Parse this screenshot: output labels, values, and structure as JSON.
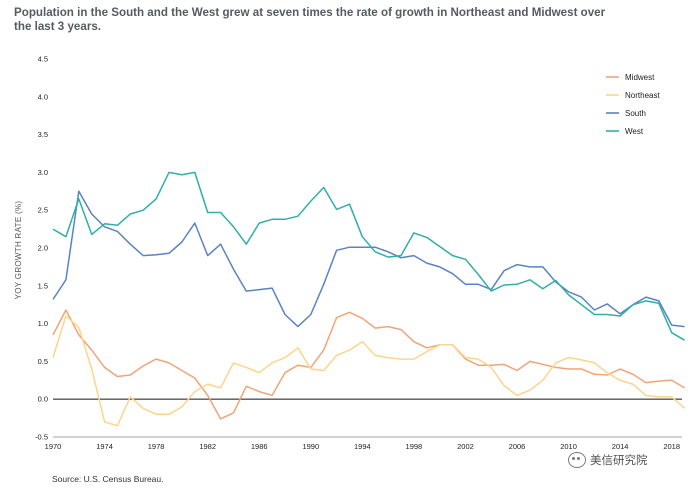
{
  "title": "Population in the South and the West grew at seven times the rate of growth in Northeast and Midwest over the last 3 years.",
  "source": "Source: U.S. Census Bureau.",
  "watermark": "美信研究院",
  "chart_data": {
    "type": "line",
    "ylabel": "YOY GROWTH RATE (%)",
    "xlabel": "",
    "xlim": [
      1970,
      2018.8
    ],
    "ylim": [
      -0.5,
      4.5
    ],
    "yticks": [
      "4.5",
      "4.0",
      "3.5",
      "3.0",
      "2.5",
      "2.0",
      "1.5",
      "1.0",
      "0.5",
      "0.0",
      "-0.5"
    ],
    "xticks": [
      "1970",
      "1974",
      "1978",
      "1982",
      "1986",
      "1990",
      "1994",
      "1998",
      "2002",
      "2006",
      "2010",
      "2014",
      "2018"
    ],
    "x": [
      1970,
      1971,
      1972,
      1973,
      1974,
      1975,
      1976,
      1977,
      1978,
      1979,
      1980,
      1981,
      1982,
      1983,
      1984,
      1985,
      1986,
      1987,
      1988,
      1989,
      1990,
      1991,
      1992,
      1993,
      1994,
      1995,
      1996,
      1997,
      1998,
      1999,
      2000,
      2001,
      2002,
      2003,
      2004,
      2005,
      2006,
      2007,
      2008,
      2009,
      2010,
      2011,
      2012,
      2013,
      2014,
      2015,
      2016,
      2017,
      2018,
      2019
    ],
    "series": [
      {
        "name": "Midwest",
        "color": "#f2a479",
        "values": [
          0.85,
          1.18,
          0.85,
          0.65,
          0.42,
          0.3,
          0.32,
          0.44,
          0.53,
          0.48,
          0.38,
          0.28,
          0.05,
          -0.26,
          -0.18,
          0.17,
          0.1,
          0.05,
          0.35,
          0.45,
          0.42,
          0.65,
          1.08,
          1.15,
          1.07,
          0.94,
          0.96,
          0.92,
          0.76,
          0.68,
          0.72,
          0.72,
          0.53,
          0.45,
          0.45,
          0.46,
          0.38,
          0.5,
          0.46,
          0.42,
          0.4,
          0.4,
          0.33,
          0.32,
          0.4,
          0.33,
          0.22,
          0.24,
          0.25,
          0.15
        ]
      },
      {
        "name": "Northeast",
        "color": "#fcd58c",
        "values": [
          0.55,
          1.1,
          0.95,
          0.4,
          -0.3,
          -0.35,
          0.03,
          -0.12,
          -0.2,
          -0.2,
          -0.1,
          0.1,
          0.2,
          0.15,
          0.48,
          0.42,
          0.35,
          0.48,
          0.55,
          0.68,
          0.4,
          0.38,
          0.58,
          0.65,
          0.76,
          0.58,
          0.55,
          0.53,
          0.53,
          0.63,
          0.72,
          0.72,
          0.55,
          0.53,
          0.42,
          0.18,
          0.05,
          0.12,
          0.25,
          0.48,
          0.55,
          0.52,
          0.48,
          0.35,
          0.25,
          0.2,
          0.05,
          0.03,
          0.03,
          -0.12
        ]
      },
      {
        "name": "South",
        "color": "#5b83c1",
        "values": [
          1.32,
          1.58,
          2.75,
          2.45,
          2.28,
          2.22,
          2.05,
          1.9,
          1.91,
          1.93,
          2.08,
          2.33,
          1.9,
          2.05,
          1.72,
          1.43,
          1.45,
          1.47,
          1.12,
          0.96,
          1.12,
          1.52,
          1.97,
          2.01,
          2.01,
          2.01,
          1.95,
          1.87,
          1.9,
          1.8,
          1.75,
          1.66,
          1.52,
          1.52,
          1.45,
          1.7,
          1.78,
          1.75,
          1.75,
          1.55,
          1.42,
          1.35,
          1.18,
          1.26,
          1.13,
          1.25,
          1.35,
          1.3,
          0.98,
          0.96
        ]
      },
      {
        "name": "West",
        "color": "#2eb0a6",
        "values": [
          2.25,
          2.15,
          2.65,
          2.18,
          2.32,
          2.3,
          2.45,
          2.5,
          2.65,
          3.0,
          2.97,
          3.0,
          2.47,
          2.47,
          2.28,
          2.05,
          2.33,
          2.38,
          2.38,
          2.42,
          2.62,
          2.8,
          2.51,
          2.58,
          2.15,
          1.95,
          1.88,
          1.9,
          2.2,
          2.14,
          2.02,
          1.9,
          1.85,
          1.65,
          1.43,
          1.51,
          1.52,
          1.58,
          1.46,
          1.57,
          1.38,
          1.25,
          1.12,
          1.12,
          1.1,
          1.25,
          1.3,
          1.27,
          0.88,
          0.78
        ]
      }
    ]
  }
}
